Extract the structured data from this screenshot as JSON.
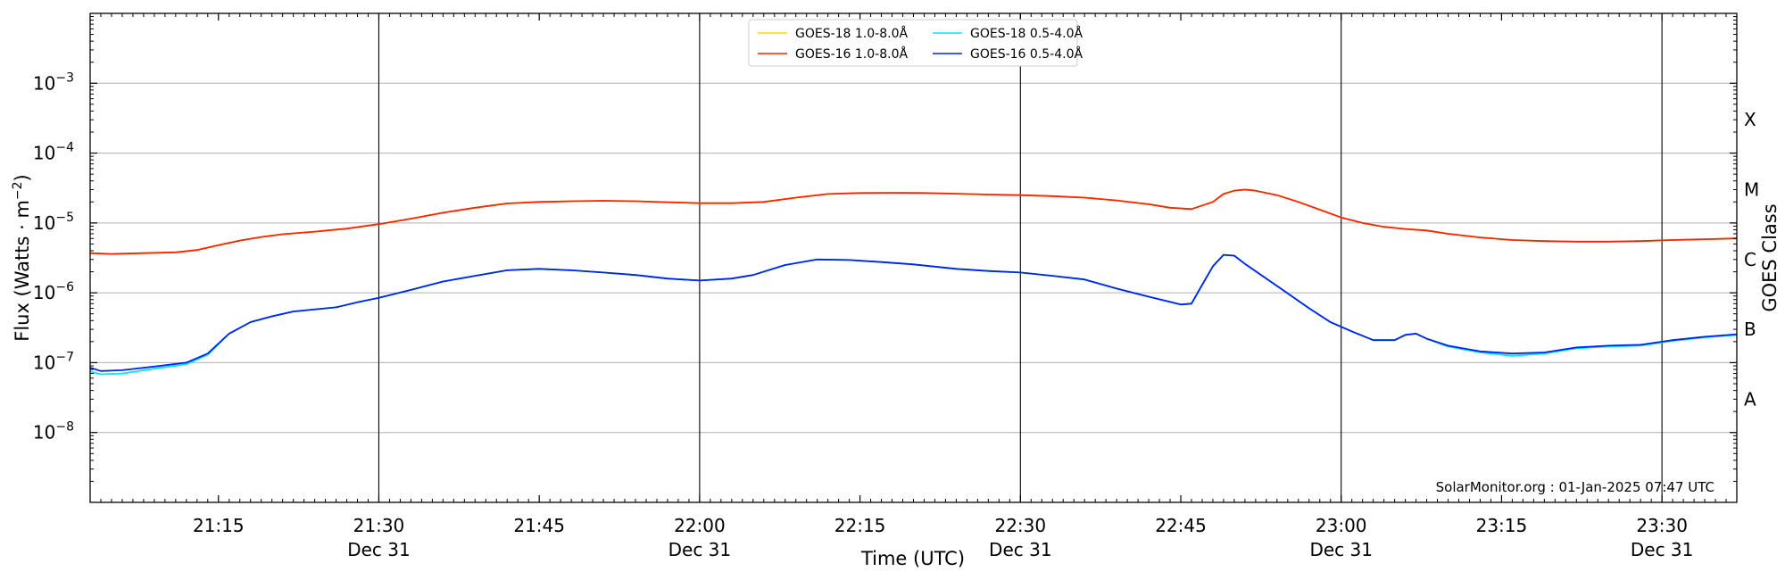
{
  "chart_data": {
    "type": "line",
    "xlabel": "Time (UTC)",
    "ylabel_main": "Flux (Watts · m",
    "ylabel_exp": "−2",
    "ylabel_close": ")",
    "right_label": "GOES Class",
    "credit": "SolarMonitor.org : 01-Jan-2025 07:47 UTC",
    "y_scale": "log",
    "ylim": [
      1e-09,
      0.01
    ],
    "xlim": [
      "21:03",
      "23:37"
    ],
    "grid": "horizontal at decades, vertical at half hours",
    "legend_position": "top-center",
    "x_ticks": [
      {
        "t": "21:15",
        "label": "21:15",
        "date": ""
      },
      {
        "t": "21:30",
        "label": "21:30",
        "date": "Dec 31"
      },
      {
        "t": "21:45",
        "label": "21:45",
        "date": ""
      },
      {
        "t": "22:00",
        "label": "22:00",
        "date": "Dec 31"
      },
      {
        "t": "22:15",
        "label": "22:15",
        "date": ""
      },
      {
        "t": "22:30",
        "label": "22:30",
        "date": "Dec 31"
      },
      {
        "t": "22:45",
        "label": "22:45",
        "date": ""
      },
      {
        "t": "23:00",
        "label": "23:00",
        "date": "Dec 31"
      },
      {
        "t": "23:15",
        "label": "23:15",
        "date": ""
      },
      {
        "t": "23:30",
        "label": "23:30",
        "date": "Dec 31"
      }
    ],
    "y_ticks": [
      {
        "value": 1e-08,
        "base": "10",
        "exp": "−8"
      },
      {
        "value": 1e-07,
        "base": "10",
        "exp": "−7"
      },
      {
        "value": 1e-06,
        "base": "10",
        "exp": "−6"
      },
      {
        "value": 1e-05,
        "base": "10",
        "exp": "−5"
      },
      {
        "value": 0.0001,
        "base": "10",
        "exp": "−4"
      },
      {
        "value": 0.001,
        "base": "10",
        "exp": "−3"
      }
    ],
    "goes_classes": [
      {
        "label": "A",
        "value": 3e-08
      },
      {
        "label": "B",
        "value": 3e-07
      },
      {
        "label": "C",
        "value": 3e-06
      },
      {
        "label": "M",
        "value": 3e-05
      },
      {
        "label": "X",
        "value": 0.0003
      }
    ],
    "legend": [
      {
        "label": "GOES-18 1.0-8.0Å",
        "color": "#ffd700"
      },
      {
        "label": "GOES-18 0.5-4.0Å",
        "color": "#00e5ff"
      },
      {
        "label": "GOES-16 1.0-8.0Å",
        "color": "#ff2200"
      },
      {
        "label": "GOES-16 0.5-4.0Å",
        "color": "#0022ee"
      }
    ],
    "series": [
      {
        "name": "GOES-18 1.0-8.0Å",
        "color": "#ffd700",
        "x": [
          "21:03",
          "21:05",
          "21:08",
          "21:11",
          "21:13",
          "21:15",
          "21:17",
          "21:19",
          "21:21",
          "21:24",
          "21:27",
          "21:30",
          "21:33",
          "21:36",
          "21:39",
          "21:42",
          "21:45",
          "21:48",
          "21:51",
          "21:54",
          "21:57",
          "22:00",
          "22:03",
          "22:06",
          "22:09",
          "22:12",
          "22:15",
          "22:18",
          "22:21",
          "22:24",
          "22:27",
          "22:30",
          "22:33",
          "22:36",
          "22:39",
          "22:42",
          "22:44",
          "22:46",
          "22:48",
          "22:49",
          "22:50",
          "22:51",
          "22:52",
          "22:54",
          "22:56",
          "22:58",
          "23:00",
          "23:02",
          "23:04",
          "23:06",
          "23:08",
          "23:10",
          "23:13",
          "23:16",
          "23:19",
          "23:22",
          "23:25",
          "23:28",
          "23:31",
          "23:34",
          "23:37"
        ],
        "y": [
          3.7e-06,
          3.6e-06,
          3.7e-06,
          3.8e-06,
          4.1e-06,
          4.8e-06,
          5.6e-06,
          6.3e-06,
          6.9e-06,
          7.5e-06,
          8.3e-06,
          9.6e-06,
          1.15e-05,
          1.4e-05,
          1.65e-05,
          1.9e-05,
          2e-05,
          2.05e-05,
          2.08e-05,
          2.05e-05,
          1.98e-05,
          1.92e-05,
          1.92e-05,
          2e-05,
          2.3e-05,
          2.6e-05,
          2.68e-05,
          2.7e-05,
          2.68e-05,
          2.62e-05,
          2.55e-05,
          2.5e-05,
          2.42e-05,
          2.3e-05,
          2.1e-05,
          1.85e-05,
          1.65e-05,
          1.58e-05,
          2e-05,
          2.6e-05,
          2.9e-05,
          3e-05,
          2.9e-05,
          2.5e-05,
          2e-05,
          1.55e-05,
          1.2e-05,
          1e-05,
          8.8e-06,
          8.2e-06,
          7.8e-06,
          7e-06,
          6.2e-06,
          5.7e-06,
          5.5e-06,
          5.4e-06,
          5.4e-06,
          5.5e-06,
          5.7e-06,
          5.85e-06,
          6e-06
        ]
      },
      {
        "name": "GOES-16 1.0-8.0Å",
        "color": "#ff2200",
        "x": [
          "21:03",
          "21:05",
          "21:08",
          "21:11",
          "21:13",
          "21:15",
          "21:17",
          "21:19",
          "21:21",
          "21:24",
          "21:27",
          "21:30",
          "21:33",
          "21:36",
          "21:39",
          "21:42",
          "21:45",
          "21:48",
          "21:51",
          "21:54",
          "21:57",
          "22:00",
          "22:03",
          "22:06",
          "22:09",
          "22:12",
          "22:15",
          "22:18",
          "22:21",
          "22:24",
          "22:27",
          "22:30",
          "22:33",
          "22:36",
          "22:39",
          "22:42",
          "22:44",
          "22:46",
          "22:48",
          "22:49",
          "22:50",
          "22:51",
          "22:52",
          "22:54",
          "22:56",
          "22:58",
          "23:00",
          "23:02",
          "23:04",
          "23:06",
          "23:08",
          "23:10",
          "23:13",
          "23:16",
          "23:19",
          "23:22",
          "23:25",
          "23:28",
          "23:31",
          "23:34",
          "23:37"
        ],
        "y": [
          3.7e-06,
          3.6e-06,
          3.7e-06,
          3.8e-06,
          4.1e-06,
          4.8e-06,
          5.6e-06,
          6.3e-06,
          6.9e-06,
          7.5e-06,
          8.3e-06,
          9.6e-06,
          1.15e-05,
          1.4e-05,
          1.65e-05,
          1.9e-05,
          2e-05,
          2.05e-05,
          2.08e-05,
          2.05e-05,
          1.98e-05,
          1.92e-05,
          1.92e-05,
          2e-05,
          2.3e-05,
          2.6e-05,
          2.68e-05,
          2.7e-05,
          2.68e-05,
          2.62e-05,
          2.55e-05,
          2.5e-05,
          2.42e-05,
          2.3e-05,
          2.1e-05,
          1.85e-05,
          1.65e-05,
          1.58e-05,
          2e-05,
          2.6e-05,
          2.9e-05,
          3e-05,
          2.9e-05,
          2.5e-05,
          2e-05,
          1.55e-05,
          1.2e-05,
          1e-05,
          8.8e-06,
          8.2e-06,
          7.8e-06,
          7e-06,
          6.2e-06,
          5.7e-06,
          5.5e-06,
          5.4e-06,
          5.4e-06,
          5.5e-06,
          5.7e-06,
          5.85e-06,
          6e-06
        ]
      },
      {
        "name": "GOES-18 0.5-4.0Å",
        "color": "#00e5ff",
        "x": [
          "21:03",
          "21:04",
          "21:06",
          "21:09",
          "21:12",
          "21:14",
          "21:16",
          "21:18",
          "21:20",
          "21:22",
          "21:26",
          "21:28",
          "21:30",
          "21:33",
          "21:36",
          "21:39",
          "21:42",
          "21:45",
          "21:48",
          "21:51",
          "21:54",
          "21:57",
          "22:00",
          "22:03",
          "22:05",
          "22:08",
          "22:11",
          "22:14",
          "22:17",
          "22:20",
          "22:24",
          "22:27",
          "22:30",
          "22:33",
          "22:36",
          "22:39",
          "22:42",
          "22:45",
          "22:46",
          "22:47",
          "22:48",
          "22:49",
          "22:50",
          "22:51",
          "22:53",
          "22:55",
          "22:57",
          "22:59",
          "23:01",
          "23:03",
          "23:05",
          "23:06",
          "23:07",
          "23:08",
          "23:10",
          "23:13",
          "23:16",
          "23:19",
          "23:22",
          "23:25",
          "23:28",
          "23:31",
          "23:34",
          "23:37"
        ],
        "y": [
          7.5e-08,
          6.8e-08,
          7e-08,
          8.2e-08,
          9.5e-08,
          1.3e-07,
          2.6e-07,
          3.8e-07,
          4.6e-07,
          5.4e-07,
          6.2e-07,
          7.3e-07,
          8.5e-07,
          1.1e-06,
          1.45e-06,
          1.75e-06,
          2.1e-06,
          2.2e-06,
          2.1e-06,
          1.95e-06,
          1.8e-06,
          1.6e-06,
          1.5e-06,
          1.6e-06,
          1.8e-06,
          2.5e-06,
          3e-06,
          2.95e-06,
          2.75e-06,
          2.55e-06,
          2.2e-06,
          2.05e-06,
          1.95e-06,
          1.75e-06,
          1.55e-06,
          1.15e-06,
          8.8e-07,
          6.8e-07,
          7e-07,
          1.3e-06,
          2.4e-06,
          3.5e-06,
          3.4e-06,
          2.6e-06,
          1.6e-06,
          9.8e-07,
          6e-07,
          3.8e-07,
          2.8e-07,
          2.1e-07,
          2.1e-07,
          2.5e-07,
          2.6e-07,
          2.2e-07,
          1.7e-07,
          1.4e-07,
          1.25e-07,
          1.35e-07,
          1.6e-07,
          1.7e-07,
          1.75e-07,
          2.05e-07,
          2.3e-07,
          2.5e-07
        ]
      },
      {
        "name": "GOES-16 0.5-4.0Å",
        "color": "#0022ee",
        "x": [
          "21:03",
          "21:04",
          "21:06",
          "21:09",
          "21:12",
          "21:14",
          "21:16",
          "21:18",
          "21:20",
          "21:22",
          "21:26",
          "21:28",
          "21:30",
          "21:33",
          "21:36",
          "21:39",
          "21:42",
          "21:45",
          "21:48",
          "21:51",
          "21:54",
          "21:57",
          "22:00",
          "22:03",
          "22:05",
          "22:08",
          "22:11",
          "22:14",
          "22:17",
          "22:20",
          "22:24",
          "22:27",
          "22:30",
          "22:33",
          "22:36",
          "22:39",
          "22:42",
          "22:45",
          "22:46",
          "22:47",
          "22:48",
          "22:49",
          "22:50",
          "22:51",
          "22:53",
          "22:55",
          "22:57",
          "22:59",
          "23:01",
          "23:03",
          "23:05",
          "23:06",
          "23:07",
          "23:08",
          "23:10",
          "23:13",
          "23:16",
          "23:19",
          "23:22",
          "23:25",
          "23:28",
          "23:31",
          "23:34",
          "23:37"
        ],
        "y": [
          8.5e-08,
          7.6e-08,
          7.8e-08,
          8.8e-08,
          1e-07,
          1.35e-07,
          2.6e-07,
          3.8e-07,
          4.6e-07,
          5.4e-07,
          6.2e-07,
          7.3e-07,
          8.5e-07,
          1.1e-06,
          1.45e-06,
          1.75e-06,
          2.1e-06,
          2.2e-06,
          2.1e-06,
          1.95e-06,
          1.8e-06,
          1.6e-06,
          1.5e-06,
          1.6e-06,
          1.8e-06,
          2.5e-06,
          3e-06,
          2.95e-06,
          2.75e-06,
          2.55e-06,
          2.2e-06,
          2.05e-06,
          1.95e-06,
          1.75e-06,
          1.55e-06,
          1.15e-06,
          8.8e-07,
          6.8e-07,
          7e-07,
          1.3e-06,
          2.4e-06,
          3.5e-06,
          3.4e-06,
          2.6e-06,
          1.6e-06,
          9.8e-07,
          6e-07,
          3.8e-07,
          2.8e-07,
          2.1e-07,
          2.1e-07,
          2.5e-07,
          2.6e-07,
          2.2e-07,
          1.75e-07,
          1.45e-07,
          1.35e-07,
          1.4e-07,
          1.65e-07,
          1.75e-07,
          1.8e-07,
          2.1e-07,
          2.35e-07,
          2.55e-07
        ]
      }
    ]
  }
}
